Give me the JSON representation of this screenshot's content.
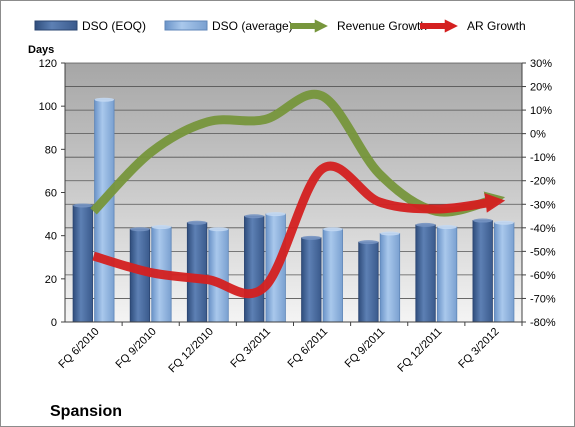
{
  "chart_data": {
    "type": "bar",
    "title": "Spansion",
    "ylabel": "Days",
    "categories": [
      "FQ 6/2010",
      "FQ 9/2010",
      "FQ 12/2010",
      "FQ 3/2011",
      "FQ 6/2011",
      "FQ 9/2011",
      "FQ 12/2011",
      "FQ 3/2012"
    ],
    "ylim": [
      0,
      120
    ],
    "yticks": [
      "0",
      "20",
      "40",
      "60",
      "80",
      "100",
      "120"
    ],
    "y2lim": [
      -80,
      30
    ],
    "y2ticks": [
      "-80%",
      "-70%",
      "-60%",
      "-50%",
      "-40%",
      "-30%",
      "-20%",
      "-10%",
      "0%",
      "10%",
      "20%",
      "30%"
    ],
    "legend_position": "top",
    "series": [
      {
        "name": "DSO (EOQ)",
        "type": "bar",
        "axis": "left",
        "color": "#4a6a9a",
        "values": [
          54,
          43,
          46,
          49,
          39,
          37,
          45,
          47
        ]
      },
      {
        "name": "DSO (average)",
        "type": "bar",
        "axis": "left",
        "color": "#8fb4e0",
        "values": [
          103,
          44,
          43,
          50,
          43,
          41,
          44,
          46
        ]
      },
      {
        "name": "Revenue Growth",
        "type": "line",
        "axis": "right",
        "color": "#77963c",
        "values": [
          -33,
          -8,
          5,
          6,
          16,
          -17,
          -33,
          -28
        ]
      },
      {
        "name": "AR Growth",
        "type": "line",
        "axis": "right",
        "color": "#d42020",
        "values": [
          -52,
          -59,
          -62,
          -65,
          -15,
          -29,
          -32,
          -29
        ]
      }
    ]
  }
}
